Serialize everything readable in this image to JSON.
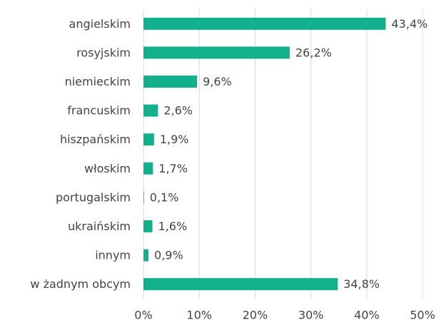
{
  "chart_data": {
    "type": "hbar",
    "categories": [
      "angielskim",
      "rosyjskim",
      "niemieckim",
      "francuskim",
      "hiszpańskim",
      "włoskim",
      "portugalskim",
      "ukraińskim",
      "innym",
      "w żadnym obcym"
    ],
    "values": [
      43.4,
      26.2,
      9.6,
      2.6,
      1.9,
      1.7,
      0.1,
      1.6,
      0.9,
      34.8
    ],
    "value_labels": [
      "43,4%",
      "26,2%",
      "9,6%",
      "2,6%",
      "1,9%",
      "1,7%",
      "0,1%",
      "1,6%",
      "0,9%",
      "34,8%"
    ],
    "color": "#13b08e",
    "xlim": [
      0,
      50
    ],
    "xticks": [
      {
        "value": 0,
        "label": "0%"
      },
      {
        "value": 10,
        "label": "10%"
      },
      {
        "value": 20,
        "label": "20%"
      },
      {
        "value": 30,
        "label": "30%"
      },
      {
        "value": 40,
        "label": "40%"
      },
      {
        "value": 50,
        "label": "50%"
      }
    ],
    "grid": true
  }
}
